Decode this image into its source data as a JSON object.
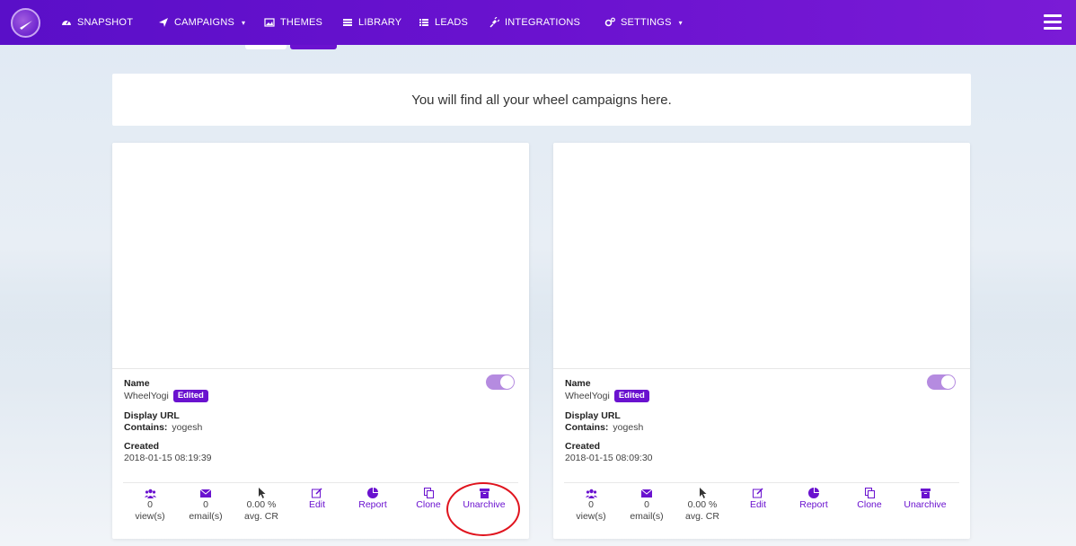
{
  "nav": {
    "items": [
      {
        "label": "SNAPSHOT",
        "icon": "dashboard-icon"
      },
      {
        "label": "CAMPAIGNS",
        "icon": "paper-plane-icon",
        "caret": "▾"
      },
      {
        "label": "THEMES",
        "icon": "image-icon"
      },
      {
        "label": "LIBRARY",
        "icon": "library-icon"
      },
      {
        "label": "LEADS",
        "icon": "list-icon"
      },
      {
        "label": "INTEGRATIONS",
        "icon": "plug-icon"
      },
      {
        "label": "SETTINGS",
        "icon": "cogs-icon",
        "caret": "▾"
      }
    ]
  },
  "banner": {
    "text": "You will find all your wheel campaigns here."
  },
  "cards": [
    {
      "name_label": "Name",
      "name": "WheelYogi",
      "badge": "Edited",
      "display_url_label": "Display URL",
      "contains_label": "Contains:",
      "contains_value": "yogesh",
      "created_label": "Created",
      "created": "2018-01-15 08:19:39",
      "toggle_on": true,
      "stats": {
        "views_value": "0",
        "views_label": "view(s)",
        "emails_value": "0",
        "emails_label": "email(s)",
        "cr_value": "0.00 %",
        "cr_label": "avg. CR"
      },
      "actions": {
        "edit": "Edit",
        "report": "Report",
        "clone": "Clone",
        "unarchive": "Unarchive"
      }
    },
    {
      "name_label": "Name",
      "name": "WheelYogi",
      "badge": "Edited",
      "display_url_label": "Display URL",
      "contains_label": "Contains:",
      "contains_value": "yogesh",
      "created_label": "Created",
      "created": "2018-01-15 08:09:30",
      "toggle_on": true,
      "stats": {
        "views_value": "0",
        "views_label": "view(s)",
        "emails_value": "0",
        "emails_label": "email(s)",
        "cr_value": "0.00 %",
        "cr_label": "avg. CR"
      },
      "actions": {
        "edit": "Edit",
        "report": "Report",
        "clone": "Clone",
        "unarchive": "Unarchive"
      }
    }
  ],
  "colors": {
    "accent": "#6a12cf",
    "nav_bg": "#5a0fc8",
    "toggle": "#b58be0",
    "annotation": "#e0141e"
  }
}
